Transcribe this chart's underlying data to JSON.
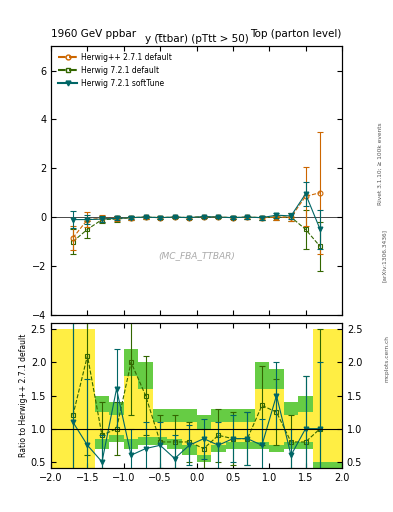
{
  "title_left": "1960 GeV ppbar",
  "title_right": "Top (parton level)",
  "main_title": "y (t̅tbar) (pTtt > 50)",
  "watermark": "(MC_FBA_TTBAR)",
  "right_label": "Rivet 3.1.10; ≥ 100k events",
  "arxiv_label": "[arXiv:1306.3436]",
  "mcplots_label": "mcplots.cern.ch",
  "ylabel_ratio": "Ratio to Herwig++ 2.7.1 default",
  "ylim_main": [
    -4,
    7
  ],
  "ylim_ratio": [
    0.4,
    2.6
  ],
  "xlim": [
    -2.0,
    2.0
  ],
  "yticks_main": [
    -4,
    -2,
    0,
    2,
    4,
    6
  ],
  "yticks_ratio": [
    0.5,
    1.0,
    1.5,
    2.0,
    2.5
  ],
  "colors": {
    "herwig_pp": "#cc6600",
    "herwig721": "#336600",
    "herwig721st": "#006666"
  },
  "legend_labels": [
    "Herwig++ 2.7.1 default",
    "Herwig 7.2.1 default",
    "Herwig 7.2.1 softTune"
  ],
  "x_centers": [
    -1.7,
    -1.5,
    -1.3,
    -1.1,
    -0.9,
    -0.7,
    -0.5,
    -0.3,
    -0.1,
    0.1,
    0.3,
    0.5,
    0.7,
    0.9,
    1.1,
    1.3,
    1.5,
    1.7
  ],
  "herwig_pp_y": [
    -0.85,
    -0.1,
    -0.05,
    -0.05,
    -0.02,
    0.0,
    -0.02,
    0.0,
    -0.02,
    0.02,
    0.0,
    -0.02,
    0.0,
    -0.02,
    0.0,
    0.0,
    0.85,
    1.0
  ],
  "herwig_pp_err": [
    0.5,
    0.3,
    0.15,
    0.1,
    0.08,
    0.06,
    0.05,
    0.04,
    0.04,
    0.04,
    0.04,
    0.05,
    0.06,
    0.08,
    0.1,
    0.15,
    1.2,
    2.5
  ],
  "herwig721_y": [
    -1.0,
    -0.5,
    -0.1,
    -0.08,
    -0.02,
    0.0,
    -0.02,
    0.0,
    -0.02,
    0.02,
    0.0,
    -0.02,
    0.0,
    -0.02,
    0.0,
    0.0,
    -0.5,
    -1.2
  ],
  "herwig721_err": [
    0.5,
    0.35,
    0.15,
    0.12,
    0.08,
    0.06,
    0.05,
    0.04,
    0.04,
    0.04,
    0.04,
    0.05,
    0.06,
    0.08,
    0.1,
    0.15,
    0.8,
    1.0
  ],
  "herwig721st_y": [
    -0.1,
    -0.1,
    -0.08,
    -0.05,
    -0.02,
    0.0,
    -0.02,
    0.0,
    -0.02,
    0.02,
    0.0,
    -0.02,
    0.0,
    -0.02,
    0.08,
    0.05,
    0.95,
    -0.5
  ],
  "herwig721st_err": [
    0.35,
    0.2,
    0.12,
    0.08,
    0.06,
    0.05,
    0.04,
    0.04,
    0.04,
    0.04,
    0.04,
    0.05,
    0.06,
    0.08,
    0.1,
    0.12,
    0.5,
    0.8
  ],
  "ratio_herwig721_y": [
    1.2,
    2.1,
    0.9,
    1.0,
    2.0,
    1.5,
    0.8,
    0.8,
    0.8,
    0.7,
    0.9,
    0.85,
    0.85,
    1.35,
    1.25,
    0.8,
    0.8,
    1.0
  ],
  "ratio_herwig721_err": [
    2.0,
    1.5,
    0.5,
    0.4,
    0.8,
    0.6,
    0.4,
    0.4,
    0.3,
    0.3,
    0.4,
    0.4,
    0.4,
    0.6,
    0.5,
    0.4,
    1.0,
    1.5
  ],
  "ratio_herwig721st_y": [
    1.1,
    0.75,
    0.5,
    1.6,
    0.6,
    0.7,
    0.75,
    0.55,
    0.75,
    0.85,
    0.75,
    0.85,
    0.85,
    0.75,
    1.5,
    0.6,
    1.0,
    1.0
  ],
  "ratio_herwig721st_err": [
    1.5,
    1.0,
    0.4,
    0.6,
    0.4,
    0.4,
    0.35,
    0.35,
    0.3,
    0.3,
    0.35,
    0.35,
    0.4,
    0.4,
    0.5,
    0.4,
    0.8,
    1.0
  ],
  "band_x_edges": [
    -2.0,
    -1.6,
    -1.4,
    -1.2,
    -1.0,
    -0.8,
    -0.6,
    -0.4,
    -0.2,
    0.0,
    0.2,
    0.4,
    0.6,
    0.8,
    1.0,
    1.2,
    1.4,
    1.6,
    2.0
  ],
  "band_green_lo": [
    0.4,
    0.4,
    0.7,
    0.8,
    0.7,
    0.75,
    0.75,
    0.7,
    0.6,
    0.5,
    0.65,
    0.7,
    0.7,
    0.7,
    0.65,
    0.7,
    0.7,
    0.4
  ],
  "band_green_hi": [
    2.5,
    2.5,
    1.5,
    1.4,
    2.2,
    2.0,
    1.3,
    1.3,
    1.3,
    1.2,
    1.3,
    1.3,
    1.3,
    2.0,
    1.9,
    1.4,
    1.5,
    2.5
  ],
  "band_yellow_lo": [
    0.4,
    0.4,
    0.85,
    0.9,
    0.85,
    0.875,
    0.875,
    0.85,
    0.75,
    0.6,
    0.75,
    0.8,
    0.8,
    0.8,
    0.75,
    0.8,
    0.8,
    0.5
  ],
  "band_yellow_hi": [
    2.5,
    2.5,
    1.25,
    1.2,
    1.8,
    1.6,
    1.1,
    1.1,
    1.1,
    1.0,
    1.1,
    1.1,
    1.1,
    1.6,
    1.6,
    1.2,
    1.25,
    2.5
  ]
}
